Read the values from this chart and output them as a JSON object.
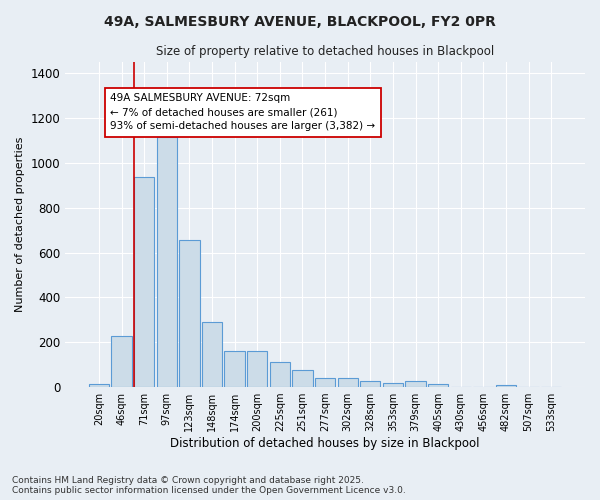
{
  "title_line1": "49A, SALMESBURY AVENUE, BLACKPOOL, FY2 0PR",
  "title_line2": "Size of property relative to detached houses in Blackpool",
  "xlabel": "Distribution of detached houses by size in Blackpool",
  "ylabel": "Number of detached properties",
  "categories": [
    "20sqm",
    "46sqm",
    "71sqm",
    "97sqm",
    "123sqm",
    "148sqm",
    "174sqm",
    "200sqm",
    "225sqm",
    "251sqm",
    "277sqm",
    "302sqm",
    "328sqm",
    "353sqm",
    "379sqm",
    "405sqm",
    "430sqm",
    "456sqm",
    "482sqm",
    "507sqm",
    "533sqm"
  ],
  "values": [
    15,
    230,
    935,
    1115,
    655,
    290,
    160,
    160,
    110,
    75,
    40,
    40,
    25,
    20,
    25,
    15,
    0,
    0,
    8,
    0,
    0
  ],
  "bar_color": "#ccdce8",
  "bar_edge_color": "#5b9bd5",
  "vline_color": "#cc0000",
  "annotation_text": "49A SALMESBURY AVENUE: 72sqm\n← 7% of detached houses are smaller (261)\n93% of semi-detached houses are larger (3,382) →",
  "annotation_box_color": "#ffffff",
  "annotation_box_edge": "#cc0000",
  "ylim": [
    0,
    1450
  ],
  "yticks": [
    0,
    200,
    400,
    600,
    800,
    1000,
    1200,
    1400
  ],
  "background_color": "#e8eef4",
  "grid_color": "#ffffff",
  "footer_line1": "Contains HM Land Registry data © Crown copyright and database right 2025.",
  "footer_line2": "Contains public sector information licensed under the Open Government Licence v3.0."
}
